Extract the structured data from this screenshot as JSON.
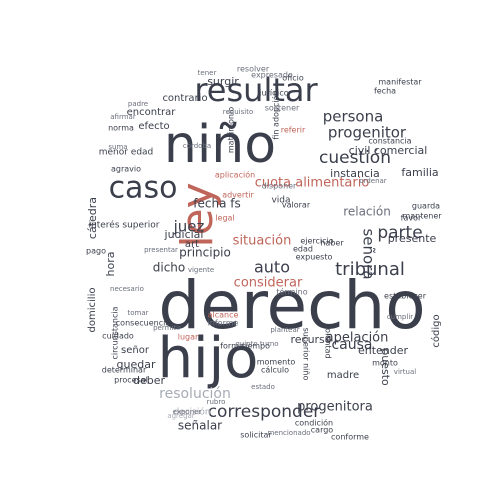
{
  "colors": {
    "dark": "#3b3f4c",
    "mid": "#6b6f7c",
    "light": "#a7abb5",
    "accent": "#c0655a",
    "accent_light": "#d9a59c"
  },
  "words": [
    {
      "text": "derecho",
      "tone": "dark"
    },
    {
      "text": "hijo",
      "tone": "dark"
    },
    {
      "text": "niño",
      "tone": "dark"
    },
    {
      "text": "ley",
      "tone": "accent"
    },
    {
      "text": "resultar",
      "tone": "dark"
    },
    {
      "text": "caso",
      "tone": "dark"
    },
    {
      "text": "tribunal",
      "tone": "dark"
    },
    {
      "text": "cuota alimentario",
      "tone": "accent"
    },
    {
      "text": "corresponder",
      "tone": "dark"
    },
    {
      "text": "cuestión",
      "tone": "dark"
    },
    {
      "text": "parte",
      "tone": "dark"
    },
    {
      "text": "auto",
      "tone": "dark"
    },
    {
      "text": "juez",
      "tone": "dark"
    },
    {
      "text": "señora",
      "tone": "dark"
    },
    {
      "text": "persona",
      "tone": "dark"
    },
    {
      "text": "progenitor",
      "tone": "dark"
    },
    {
      "text": "causa",
      "tone": "dark"
    },
    {
      "text": "resolución",
      "tone": "light"
    },
    {
      "text": "situación",
      "tone": "accent"
    },
    {
      "text": "relación",
      "tone": "mid"
    },
    {
      "text": "considerar",
      "tone": "accent"
    },
    {
      "text": "apelación",
      "tone": "dark"
    },
    {
      "text": "civil comercial",
      "tone": "dark"
    },
    {
      "text": "recurso",
      "tone": "dark"
    },
    {
      "text": "progenitora",
      "tone": "dark"
    },
    {
      "text": "fecha fs",
      "tone": "dark"
    },
    {
      "text": "principio",
      "tone": "dark"
    },
    {
      "text": "judicial",
      "tone": "dark"
    },
    {
      "text": "presente",
      "tone": "dark"
    },
    {
      "text": "señalar",
      "tone": "dark"
    },
    {
      "text": "instancia",
      "tone": "dark"
    },
    {
      "text": "familia",
      "tone": "dark"
    },
    {
      "text": "efecto",
      "tone": "dark"
    },
    {
      "text": "encontrar",
      "tone": "dark"
    },
    {
      "text": "dicho",
      "tone": "dark"
    },
    {
      "text": "madre",
      "tone": "dark"
    },
    {
      "text": "cátedra",
      "tone": "dark"
    },
    {
      "text": "hora",
      "tone": "dark"
    },
    {
      "text": "entender",
      "tone": "dark"
    },
    {
      "text": "puesto",
      "tone": "dark"
    },
    {
      "text": "señor",
      "tone": "dark"
    },
    {
      "text": "quedar",
      "tone": "dark"
    },
    {
      "text": "deber",
      "tone": "dark"
    },
    {
      "text": "art",
      "tone": "dark"
    },
    {
      "text": "surgir",
      "tone": "dark"
    },
    {
      "text": "contrario",
      "tone": "dark"
    },
    {
      "text": "vida",
      "tone": "dark"
    },
    {
      "text": "interés superior",
      "tone": "dark"
    },
    {
      "text": "menor edad",
      "tone": "dark"
    },
    {
      "text": "domicilio",
      "tone": "dark"
    },
    {
      "text": "informe",
      "tone": "mid"
    },
    {
      "text": "alcance",
      "tone": "accent"
    },
    {
      "text": "lugar",
      "tone": "accent"
    },
    {
      "text": "voluntad",
      "tone": "dark"
    },
    {
      "text": "momento",
      "tone": "dark"
    },
    {
      "text": "cálculo",
      "tone": "dark"
    },
    {
      "text": "fecha",
      "tone": "dark"
    },
    {
      "text": "guarda",
      "tone": "dark"
    },
    {
      "text": "favor",
      "tone": "dark"
    },
    {
      "text": "cargo",
      "tone": "dark"
    },
    {
      "text": "forma",
      "tone": "dark"
    },
    {
      "text": "tiempo",
      "tone": "dark"
    },
    {
      "text": "solicitar",
      "tone": "dark"
    },
    {
      "text": "condición",
      "tone": "dark"
    },
    {
      "text": "decisión",
      "tone": "light"
    },
    {
      "text": "aplicación",
      "tone": "accent"
    },
    {
      "text": "advertir",
      "tone": "accent"
    },
    {
      "text": "legal",
      "tone": "accent"
    },
    {
      "text": "código",
      "tone": "dark"
    },
    {
      "text": "cuidado",
      "tone": "dark"
    },
    {
      "text": "norma",
      "tone": "dark"
    },
    {
      "text": "pago",
      "tone": "dark"
    },
    {
      "text": "oficio",
      "tone": "dark"
    },
    {
      "text": "matrimonio",
      "tone": "dark"
    },
    {
      "text": "fin adopción",
      "tone": "dark"
    },
    {
      "text": "conforme",
      "tone": "dark"
    },
    {
      "text": "sostener",
      "tone": "mid"
    },
    {
      "text": "disponer",
      "tone": "mid"
    },
    {
      "text": "valorar",
      "tone": "dark"
    },
    {
      "text": "edad",
      "tone": "dark"
    },
    {
      "text": "haber",
      "tone": "dark"
    },
    {
      "text": "expuesto",
      "tone": "dark"
    },
    {
      "text": "ejercicio",
      "tone": "dark"
    },
    {
      "text": "mantener",
      "tone": "dark"
    },
    {
      "text": "constancia",
      "tone": "dark"
    },
    {
      "text": "jurídico",
      "tone": "dark"
    },
    {
      "text": "establecer",
      "tone": "dark"
    },
    {
      "text": "monto",
      "tone": "dark"
    },
    {
      "text": "manifestar",
      "tone": "dark"
    },
    {
      "text": "agravio",
      "tone": "dark"
    },
    {
      "text": "procesal",
      "tone": "dark"
    },
    {
      "text": "consecuencia",
      "tone": "dark"
    },
    {
      "text": "determinar",
      "tone": "dark"
    },
    {
      "text": "referir",
      "tone": "accent"
    },
    {
      "text": "resolver",
      "tone": "mid"
    },
    {
      "text": "expresado",
      "tone": "mid"
    },
    {
      "text": "vigente",
      "tone": "mid"
    },
    {
      "text": "presentar",
      "tone": "mid"
    },
    {
      "text": "permitir",
      "tone": "mid"
    },
    {
      "text": "término",
      "tone": "mid"
    },
    {
      "text": "plantear",
      "tone": "mid"
    },
    {
      "text": "suma",
      "tone": "mid"
    },
    {
      "text": "superior niño",
      "tone": "dark"
    },
    {
      "text": "circunstancia",
      "tone": "dark"
    },
    {
      "text": "quinto turno",
      "tone": "mid"
    },
    {
      "text": "agregar",
      "tone": "light"
    },
    {
      "text": "tomar",
      "tone": "mid"
    },
    {
      "text": "necesario",
      "tone": "mid"
    },
    {
      "text": "exponer",
      "tone": "mid"
    },
    {
      "text": "virtual",
      "tone": "mid"
    },
    {
      "text": "cumplir",
      "tone": "mid"
    },
    {
      "text": "afirmar",
      "tone": "mid"
    },
    {
      "text": "tener",
      "tone": "mid"
    },
    {
      "text": "padre",
      "tone": "mid"
    },
    {
      "text": "córdoba",
      "tone": "mid"
    },
    {
      "text": "rubro",
      "tone": "mid"
    },
    {
      "text": "requisito",
      "tone": "mid"
    },
    {
      "text": "estado",
      "tone": "mid"
    },
    {
      "text": "ordenar",
      "tone": "mid"
    },
    {
      "text": "mencionado",
      "tone": "mid"
    },
    {
      "text": "cuenta",
      "tone": "mid"
    }
  ]
}
